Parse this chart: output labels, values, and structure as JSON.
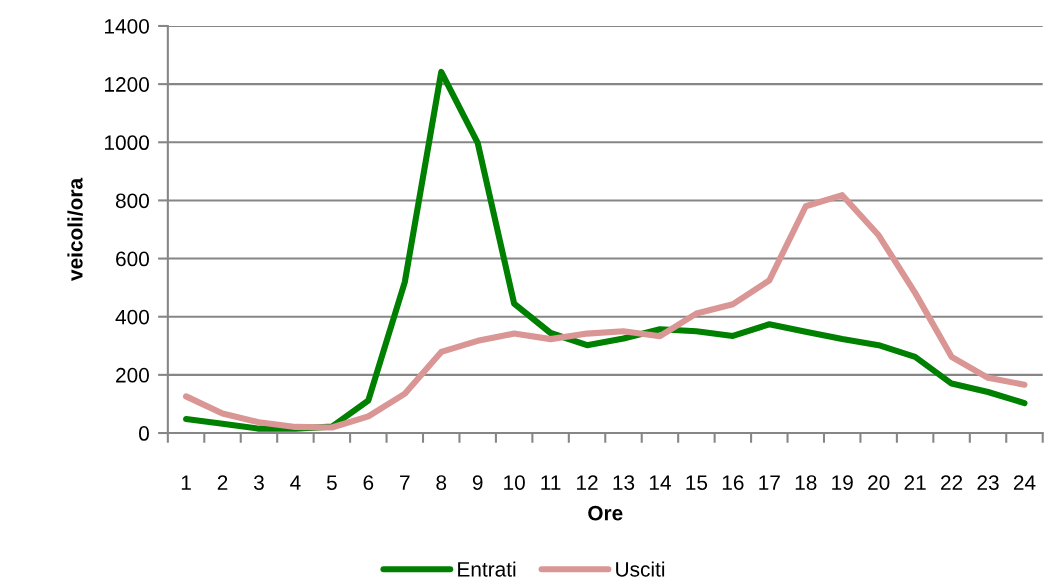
{
  "chart_data": {
    "type": "line",
    "xlabel": "Ore",
    "ylabel": "veicoli/ora",
    "categories": [
      "1",
      "2",
      "3",
      "4",
      "5",
      "6",
      "7",
      "8",
      "9",
      "10",
      "11",
      "12",
      "13",
      "14",
      "15",
      "16",
      "17",
      "18",
      "19",
      "20",
      "21",
      "22",
      "23",
      "24"
    ],
    "series": [
      {
        "name": "Entrati",
        "color": "#008000",
        "values": [
          48,
          32,
          15,
          15,
          22,
          112,
          519,
          1242,
          998,
          445,
          344,
          302,
          325,
          357,
          350,
          334,
          374,
          348,
          323,
          302,
          262,
          170,
          141,
          103
        ]
      },
      {
        "name": "Usciti",
        "color": "#d99694",
        "values": [
          126,
          67,
          37,
          21,
          19,
          57,
          135,
          279,
          317,
          342,
          323,
          342,
          350,
          333,
          411,
          443,
          525,
          780,
          818,
          680,
          482,
          262,
          190,
          166
        ]
      }
    ],
    "ylim": [
      0,
      1400
    ],
    "yticks": [
      0,
      200,
      400,
      600,
      800,
      1000,
      1200,
      1400
    ],
    "grid": "y",
    "legend": "bottom",
    "marker": "none",
    "line_style": "solid"
  }
}
